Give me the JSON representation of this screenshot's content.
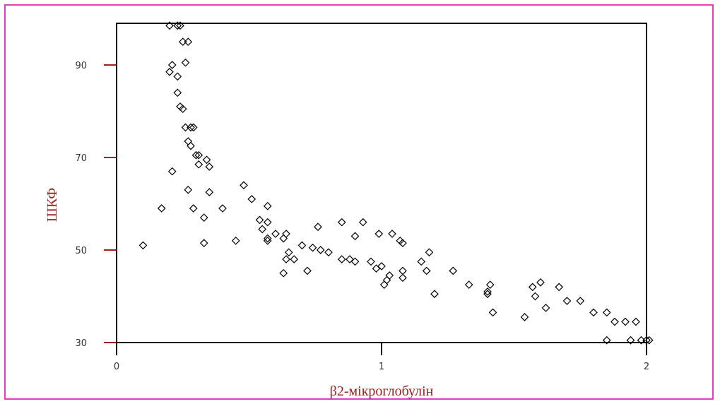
{
  "colors": {
    "frame_border": "#e040c0",
    "axis": "#000000",
    "tick": "#a02020",
    "marker": "#000000",
    "title": "#a02020"
  },
  "chart_data": {
    "type": "scatter",
    "title": "",
    "xlabel": "β2-мікроглобулін",
    "ylabel": "ШКФ",
    "xlim": [
      0,
      2
    ],
    "ylim": [
      30,
      99
    ],
    "x_ticks": [
      0,
      1,
      2
    ],
    "x_tick_labels": [
      "0",
      "1",
      "2"
    ],
    "y_ticks": [
      30,
      50,
      70,
      90
    ],
    "y_tick_labels": [
      "30",
      "50",
      "70",
      "90"
    ],
    "grid": false,
    "marker": "diamond-open",
    "series": [
      {
        "points": [
          [
            0.2,
            98.5
          ],
          [
            0.23,
            98.5
          ],
          [
            0.24,
            98.5
          ],
          [
            0.25,
            95
          ],
          [
            0.27,
            95
          ],
          [
            0.26,
            90.5
          ],
          [
            0.21,
            90
          ],
          [
            0.2,
            88.5
          ],
          [
            0.23,
            87.5
          ],
          [
            0.23,
            84
          ],
          [
            0.24,
            81
          ],
          [
            0.25,
            80.5
          ],
          [
            0.26,
            76.5
          ],
          [
            0.28,
            76.5
          ],
          [
            0.29,
            76.5
          ],
          [
            0.27,
            73.5
          ],
          [
            0.28,
            72.5
          ],
          [
            0.3,
            70.5
          ],
          [
            0.31,
            70.5
          ],
          [
            0.34,
            69.5
          ],
          [
            0.31,
            68.5
          ],
          [
            0.35,
            68
          ],
          [
            0.21,
            67
          ],
          [
            0.27,
            63
          ],
          [
            0.35,
            62.5
          ],
          [
            0.48,
            64
          ],
          [
            0.51,
            61
          ],
          [
            0.17,
            59
          ],
          [
            0.29,
            59
          ],
          [
            0.4,
            59
          ],
          [
            0.57,
            59.5
          ],
          [
            0.33,
            57
          ],
          [
            0.54,
            56.5
          ],
          [
            0.57,
            56
          ],
          [
            0.55,
            54.5
          ],
          [
            0.6,
            53.5
          ],
          [
            0.64,
            53.5
          ],
          [
            0.57,
            52.5
          ],
          [
            0.63,
            52.5
          ],
          [
            0.33,
            51.5
          ],
          [
            0.45,
            52
          ],
          [
            0.57,
            52
          ],
          [
            0.65,
            49.5
          ],
          [
            0.7,
            51
          ],
          [
            0.74,
            50.5
          ],
          [
            0.77,
            50
          ],
          [
            0.8,
            49.5
          ],
          [
            0.76,
            55
          ],
          [
            0.85,
            56
          ],
          [
            0.93,
            56
          ],
          [
            0.9,
            53
          ],
          [
            0.99,
            53.5
          ],
          [
            0.67,
            48
          ],
          [
            0.64,
            48
          ],
          [
            0.63,
            45
          ],
          [
            0.72,
            45.5
          ],
          [
            0.85,
            48
          ],
          [
            0.88,
            48
          ],
          [
            0.9,
            47.5
          ],
          [
            0.96,
            47.5
          ],
          [
            0.98,
            46
          ],
          [
            1.0,
            46.5
          ],
          [
            1.03,
            44.5
          ],
          [
            1.01,
            42.5
          ],
          [
            1.02,
            43.5
          ],
          [
            1.04,
            53.5
          ],
          [
            1.07,
            52
          ],
          [
            1.08,
            51.5
          ],
          [
            1.08,
            45.5
          ],
          [
            1.08,
            44
          ],
          [
            1.18,
            49.5
          ],
          [
            1.15,
            47.5
          ],
          [
            1.17,
            45.5
          ],
          [
            1.2,
            40.5
          ],
          [
            1.27,
            45.5
          ],
          [
            1.33,
            42.5
          ],
          [
            1.4,
            41
          ],
          [
            1.41,
            42.5
          ],
          [
            1.42,
            36.5
          ],
          [
            1.4,
            40.5
          ],
          [
            1.54,
            35.5
          ],
          [
            1.57,
            42
          ],
          [
            1.6,
            43
          ],
          [
            1.58,
            40
          ],
          [
            1.62,
            37.5
          ],
          [
            1.67,
            42
          ],
          [
            1.7,
            39
          ],
          [
            1.75,
            39
          ],
          [
            1.8,
            36.5
          ],
          [
            1.85,
            36.5
          ],
          [
            1.88,
            34.5
          ],
          [
            1.92,
            34.5
          ],
          [
            1.96,
            34.5
          ],
          [
            1.85,
            30.5
          ],
          [
            1.94,
            30.5
          ],
          [
            1.98,
            30.5
          ],
          [
            2.0,
            30.5
          ],
          [
            2.01,
            30.5
          ],
          [
            0.1,
            51
          ]
        ]
      }
    ]
  }
}
